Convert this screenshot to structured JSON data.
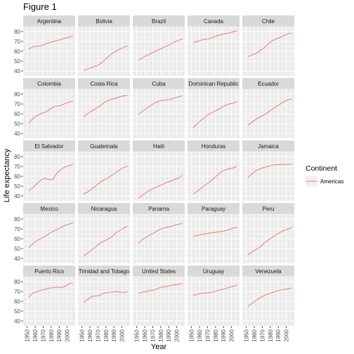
{
  "chart_data": {
    "type": "line",
    "title": "Figure 1",
    "xlabel": "Year",
    "ylabel": "Life expectancy",
    "xlim": [
      1945,
      2010
    ],
    "ylim": [
      35,
      85
    ],
    "x_ticks": [
      1950,
      1960,
      1970,
      1980,
      1990,
      2000
    ],
    "y_ticks": [
      40,
      50,
      60,
      70,
      80
    ],
    "x": [
      1952,
      1957,
      1962,
      1967,
      1972,
      1977,
      1982,
      1987,
      1992,
      1997,
      2002,
      2007
    ],
    "legend": {
      "title": "Continent",
      "entries": [
        "Americas"
      ],
      "position": "right"
    },
    "colors": {
      "series": "#F8766D",
      "panel_bg": "#EBEBEB",
      "strip_bg": "#D9D9D9",
      "grid": "#FFFFFF"
    },
    "grid": true,
    "panels": [
      {
        "name": "Argentina",
        "values": [
          62.5,
          64.4,
          65.1,
          65.6,
          67.1,
          68.5,
          69.9,
          70.8,
          71.9,
          73.3,
          74.3,
          75.3
        ]
      },
      {
        "name": "Bolivia",
        "values": [
          40.4,
          41.9,
          43.4,
          45.0,
          46.7,
          50.0,
          53.9,
          57.3,
          59.9,
          62.1,
          63.9,
          65.6
        ]
      },
      {
        "name": "Brazil",
        "values": [
          50.9,
          53.3,
          55.7,
          57.6,
          59.5,
          61.5,
          63.3,
          65.2,
          67.1,
          69.4,
          71.0,
          72.4
        ]
      },
      {
        "name": "Canada",
        "values": [
          68.8,
          70.0,
          71.3,
          72.1,
          72.9,
          74.2,
          75.8,
          76.9,
          78.0,
          78.6,
          79.8,
          80.7
        ]
      },
      {
        "name": "Chile",
        "values": [
          54.7,
          56.1,
          57.9,
          60.5,
          63.4,
          67.1,
          70.6,
          72.5,
          74.1,
          75.8,
          77.9,
          78.6
        ]
      },
      {
        "name": "Colombia",
        "values": [
          50.6,
          55.1,
          57.9,
          60.0,
          61.6,
          63.8,
          66.7,
          67.8,
          68.4,
          70.3,
          71.7,
          72.9
        ]
      },
      {
        "name": "Costa Rica",
        "values": [
          57.2,
          60.0,
          62.8,
          65.4,
          67.8,
          70.8,
          73.4,
          74.8,
          75.7,
          77.3,
          78.1,
          78.8
        ]
      },
      {
        "name": "Cuba",
        "values": [
          59.4,
          62.3,
          65.2,
          68.3,
          70.7,
          72.6,
          73.7,
          74.2,
          74.4,
          76.2,
          77.2,
          78.3
        ]
      },
      {
        "name": "Dominican Republic",
        "values": [
          45.9,
          49.8,
          53.5,
          56.8,
          59.6,
          61.8,
          63.7,
          66.0,
          68.5,
          70.0,
          70.8,
          72.2
        ]
      },
      {
        "name": "Ecuador",
        "values": [
          48.4,
          51.4,
          54.6,
          56.7,
          58.8,
          61.3,
          64.3,
          67.2,
          69.6,
          72.3,
          74.2,
          74.9
        ]
      },
      {
        "name": "El Salvador",
        "values": [
          45.3,
          48.6,
          52.3,
          55.9,
          58.2,
          56.7,
          56.6,
          63.2,
          66.8,
          69.5,
          70.7,
          71.9
        ]
      },
      {
        "name": "Guatemala",
        "values": [
          42.0,
          44.1,
          47.0,
          50.0,
          53.7,
          56.0,
          58.1,
          60.8,
          63.4,
          66.3,
          68.98,
          70.3
        ]
      },
      {
        "name": "Haiti",
        "values": [
          37.6,
          40.7,
          43.6,
          46.2,
          48.0,
          49.9,
          51.5,
          53.6,
          55.1,
          56.7,
          58.1,
          60.9
        ]
      },
      {
        "name": "Honduras",
        "values": [
          41.9,
          44.7,
          48.0,
          50.9,
          53.9,
          57.4,
          60.9,
          64.5,
          66.4,
          67.7,
          68.6,
          70.2
        ]
      },
      {
        "name": "Jamaica",
        "values": [
          58.5,
          62.6,
          65.6,
          67.5,
          69.0,
          70.1,
          71.2,
          71.8,
          71.8,
          72.3,
          72.0,
          72.6
        ]
      },
      {
        "name": "Mexico",
        "values": [
          50.8,
          55.2,
          58.3,
          60.1,
          62.4,
          65.0,
          67.4,
          69.5,
          71.5,
          73.7,
          74.9,
          76.2
        ]
      },
      {
        "name": "Nicaragua",
        "values": [
          42.3,
          45.4,
          48.6,
          51.9,
          55.2,
          57.5,
          59.3,
          62.0,
          65.8,
          68.4,
          70.8,
          72.9
        ]
      },
      {
        "name": "Panama",
        "values": [
          55.2,
          59.2,
          61.8,
          64.1,
          66.2,
          68.7,
          70.5,
          71.5,
          72.5,
          73.7,
          74.7,
          75.5
        ]
      },
      {
        "name": "Paraguay",
        "values": [
          62.6,
          63.2,
          64.4,
          64.95,
          65.8,
          66.4,
          66.9,
          67.4,
          68.2,
          69.4,
          70.8,
          71.8
        ]
      },
      {
        "name": "Peru",
        "values": [
          43.9,
          46.3,
          49.1,
          51.4,
          55.4,
          58.4,
          61.4,
          64.1,
          66.5,
          68.4,
          69.9,
          71.4
        ]
      },
      {
        "name": "Puerto Rico",
        "values": [
          64.3,
          68.5,
          69.6,
          71.1,
          72.2,
          73.4,
          73.8,
          74.6,
          73.9,
          74.9,
          77.8,
          78.7
        ]
      },
      {
        "name": "Trinidad and Tobago",
        "values": [
          59.1,
          61.8,
          64.9,
          65.4,
          65.9,
          68.3,
          68.8,
          69.6,
          69.9,
          69.5,
          68.98,
          69.8
        ]
      },
      {
        "name": "United States",
        "values": [
          68.4,
          69.5,
          70.2,
          70.8,
          71.3,
          73.4,
          74.7,
          75.0,
          76.1,
          76.8,
          77.3,
          78.2
        ]
      },
      {
        "name": "Uruguay",
        "values": [
          66.1,
          67.0,
          68.3,
          68.5,
          68.7,
          69.5,
          70.8,
          71.9,
          72.8,
          74.2,
          75.3,
          76.4
        ]
      },
      {
        "name": "Venezuela",
        "values": [
          55.1,
          57.9,
          60.8,
          63.5,
          65.7,
          67.5,
          68.6,
          70.2,
          71.2,
          72.1,
          72.8,
          73.7
        ]
      }
    ]
  }
}
